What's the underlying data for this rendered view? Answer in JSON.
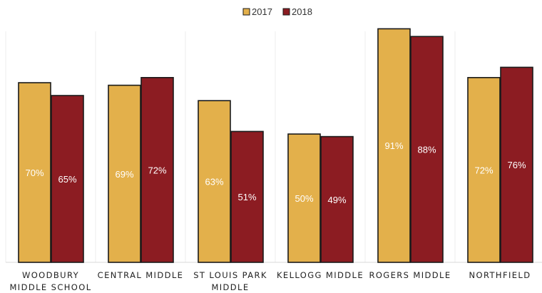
{
  "chart_data": {
    "type": "bar",
    "categories": [
      [
        "WOODBURY",
        "MIDDLE SCHOOL"
      ],
      [
        "CENTRAL MIDDLE"
      ],
      [
        "ST LOUIS PARK",
        "MIDDLE"
      ],
      [
        "KELLOGG MIDDLE"
      ],
      [
        "ROGERS MIDDLE"
      ],
      [
        "NORTHFIELD"
      ]
    ],
    "series": [
      {
        "name": "2017",
        "color": "#e3b04b",
        "values": [
          70,
          69,
          63,
          50,
          91,
          72
        ],
        "labels": [
          "70%",
          "69%",
          "63%",
          "50%",
          "91%",
          "72%"
        ]
      },
      {
        "name": "2018",
        "color": "#8c1c22",
        "values": [
          65,
          72,
          51,
          49,
          88,
          76
        ],
        "labels": [
          "65%",
          "72%",
          "51%",
          "49%",
          "88%",
          "76%"
        ]
      }
    ],
    "ylim": [
      0,
      100
    ],
    "grid": false,
    "legend": "top-center"
  }
}
